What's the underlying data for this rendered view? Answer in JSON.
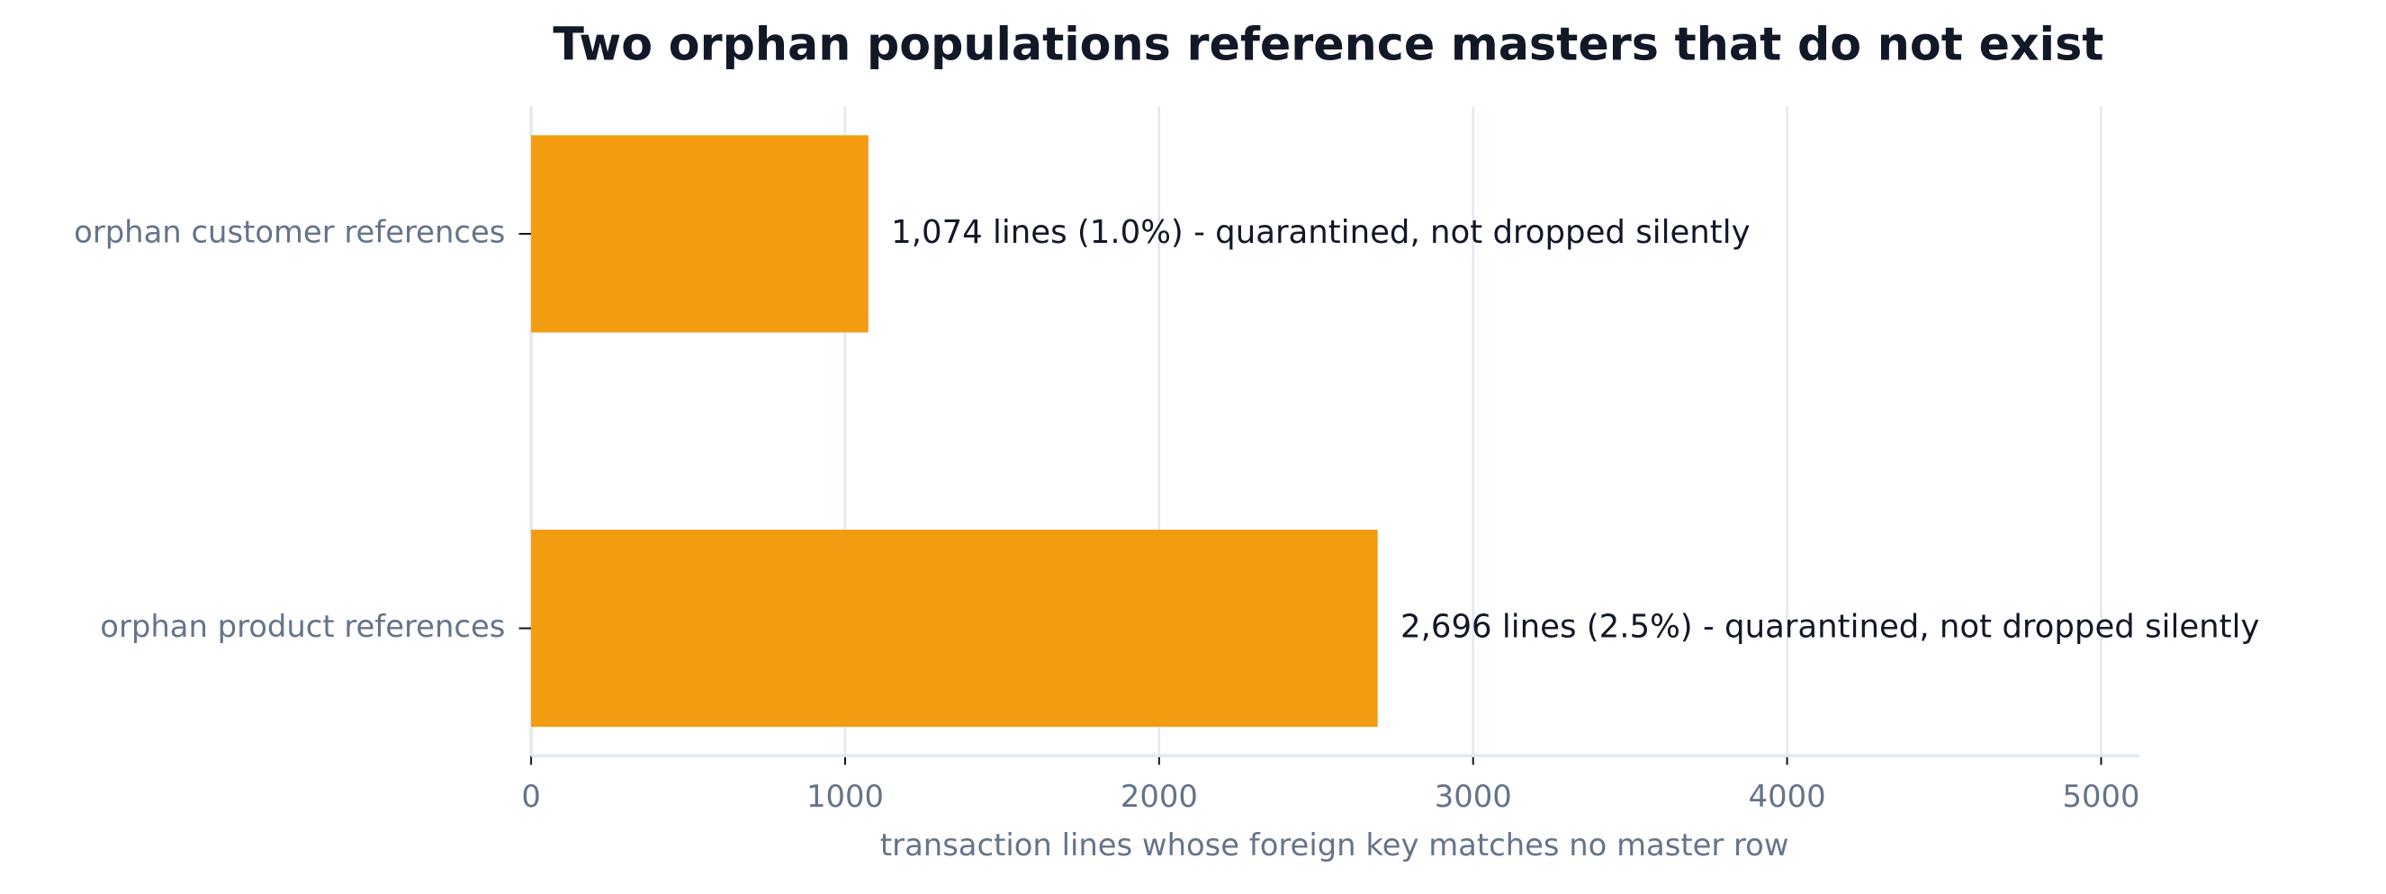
{
  "chart_data": {
    "type": "bar",
    "orientation": "horizontal",
    "title": "Two orphan populations reference masters that do not exist",
    "x_label": "transaction lines whose foreign key matches no master row",
    "categories": [
      "orphan customer references",
      "orphan product references"
    ],
    "values": [
      1074,
      2696
    ],
    "value_labels": [
      "1,074 lines (1.0%) - quarantined, not dropped silently",
      "2,696 lines (2.5%) - quarantined, not dropped silently"
    ],
    "color": "#f39c12",
    "xlim": [
      0,
      5122
    ],
    "xticks": [
      0,
      1000,
      2000,
      3000,
      4000,
      5000
    ],
    "grid": true
  }
}
